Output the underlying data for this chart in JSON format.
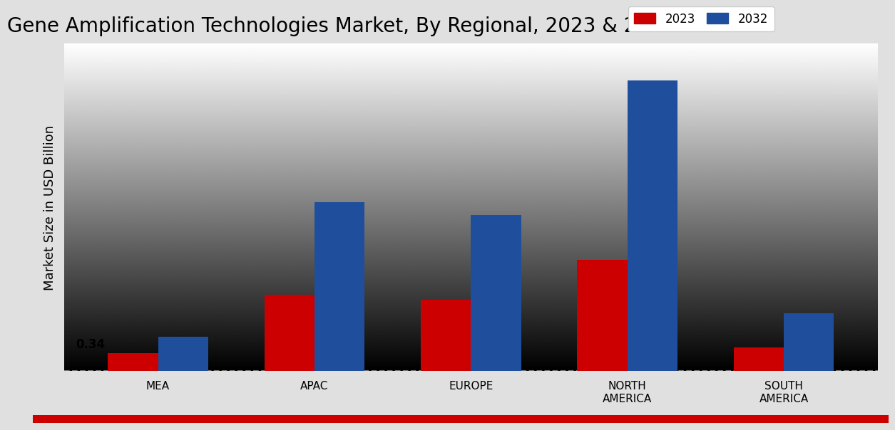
{
  "title": "Gene Amplification Technologies Market, By Regional, 2023 & 2032",
  "categories": [
    "MEA",
    "APAC",
    "EUROPE",
    "NORTH\nAMERICA",
    "SOUTH\nAMERICA"
  ],
  "values_2023": [
    0.34,
    1.45,
    1.35,
    2.1,
    0.45
  ],
  "values_2032": [
    0.65,
    3.2,
    2.95,
    5.5,
    1.1
  ],
  "color_2023": "#cc0000",
  "color_2032": "#1f4e9c",
  "ylabel": "Market Size in USD Billion",
  "annotation_label": "0.34",
  "annotation_category_index": 0,
  "legend_labels": [
    "2023",
    "2032"
  ],
  "bar_width": 0.32,
  "ylim": [
    0,
    6.2
  ],
  "title_fontsize": 20,
  "axis_label_fontsize": 13,
  "tick_fontsize": 11,
  "legend_fontsize": 12
}
